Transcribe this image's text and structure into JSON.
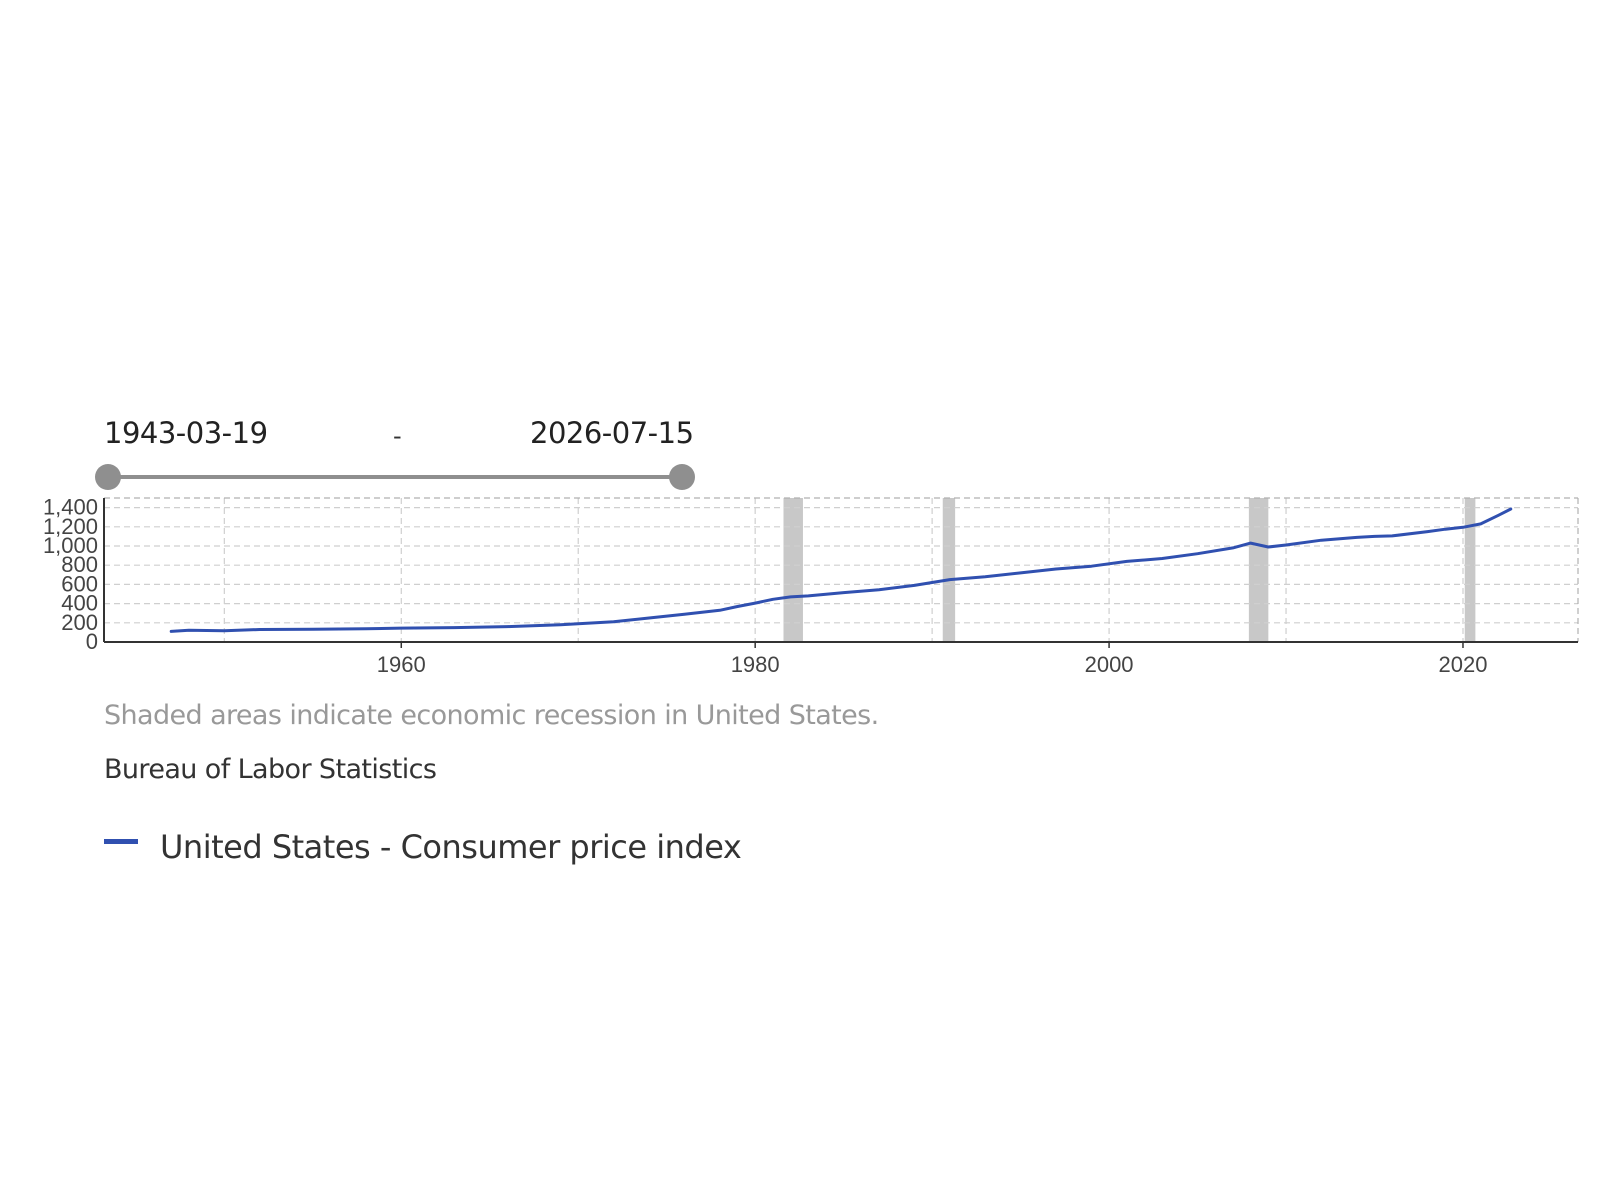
{
  "date_range": {
    "start": "1943-03-19",
    "end": "2026-07-15",
    "separator": "-"
  },
  "footnote": "Shaded areas indicate economic recession in United States.",
  "source": "Bureau of Labor Statistics",
  "colors": {
    "series": "#3050b0",
    "recession": "#c8c8c8",
    "grid": "#cfcfcf",
    "slider": "#8f8f8f"
  },
  "chart_data": {
    "type": "line",
    "title": "",
    "xlabel": "",
    "ylabel": "",
    "xlim": [
      1943.2,
      2026.5
    ],
    "ylim": [
      0,
      1500
    ],
    "x_ticks": [
      1960,
      1980,
      2000,
      2020
    ],
    "y_ticks": [
      0,
      200,
      400,
      600,
      800,
      1000,
      1200,
      1400
    ],
    "y_tick_labels": [
      "0",
      "200",
      "400",
      "600",
      "800",
      "1,000",
      "1,200",
      "1,400"
    ],
    "grid": true,
    "legend_position": "bottom-left",
    "recessions": [
      [
        1981.6,
        1982.7
      ],
      [
        1990.6,
        1991.3
      ],
      [
        2007.9,
        2009.0
      ],
      [
        2020.1,
        2020.7
      ]
    ],
    "series": [
      {
        "name": "United States - Consumer price index",
        "x": [
          1947,
          1948,
          1950,
          1952,
          1955,
          1958,
          1960,
          1963,
          1966,
          1969,
          1972,
          1974,
          1976,
          1978,
          1979,
          1980,
          1981,
          1982,
          1983,
          1985,
          1987,
          1989,
          1990,
          1991,
          1993,
          1995,
          1997,
          1999,
          2001,
          2003,
          2005,
          2007,
          2008,
          2009,
          2010,
          2012,
          2014,
          2015,
          2016,
          2018,
          2019,
          2020,
          2021,
          2022,
          2022.7
        ],
        "y": [
          110,
          122,
          118,
          130,
          133,
          138,
          145,
          150,
          160,
          180,
          210,
          250,
          290,
          330,
          370,
          405,
          445,
          470,
          480,
          515,
          545,
          590,
          620,
          650,
          680,
          720,
          760,
          790,
          840,
          870,
          920,
          980,
          1030,
          990,
          1010,
          1060,
          1090,
          1100,
          1105,
          1150,
          1175,
          1195,
          1230,
          1320,
          1385
        ]
      }
    ]
  }
}
